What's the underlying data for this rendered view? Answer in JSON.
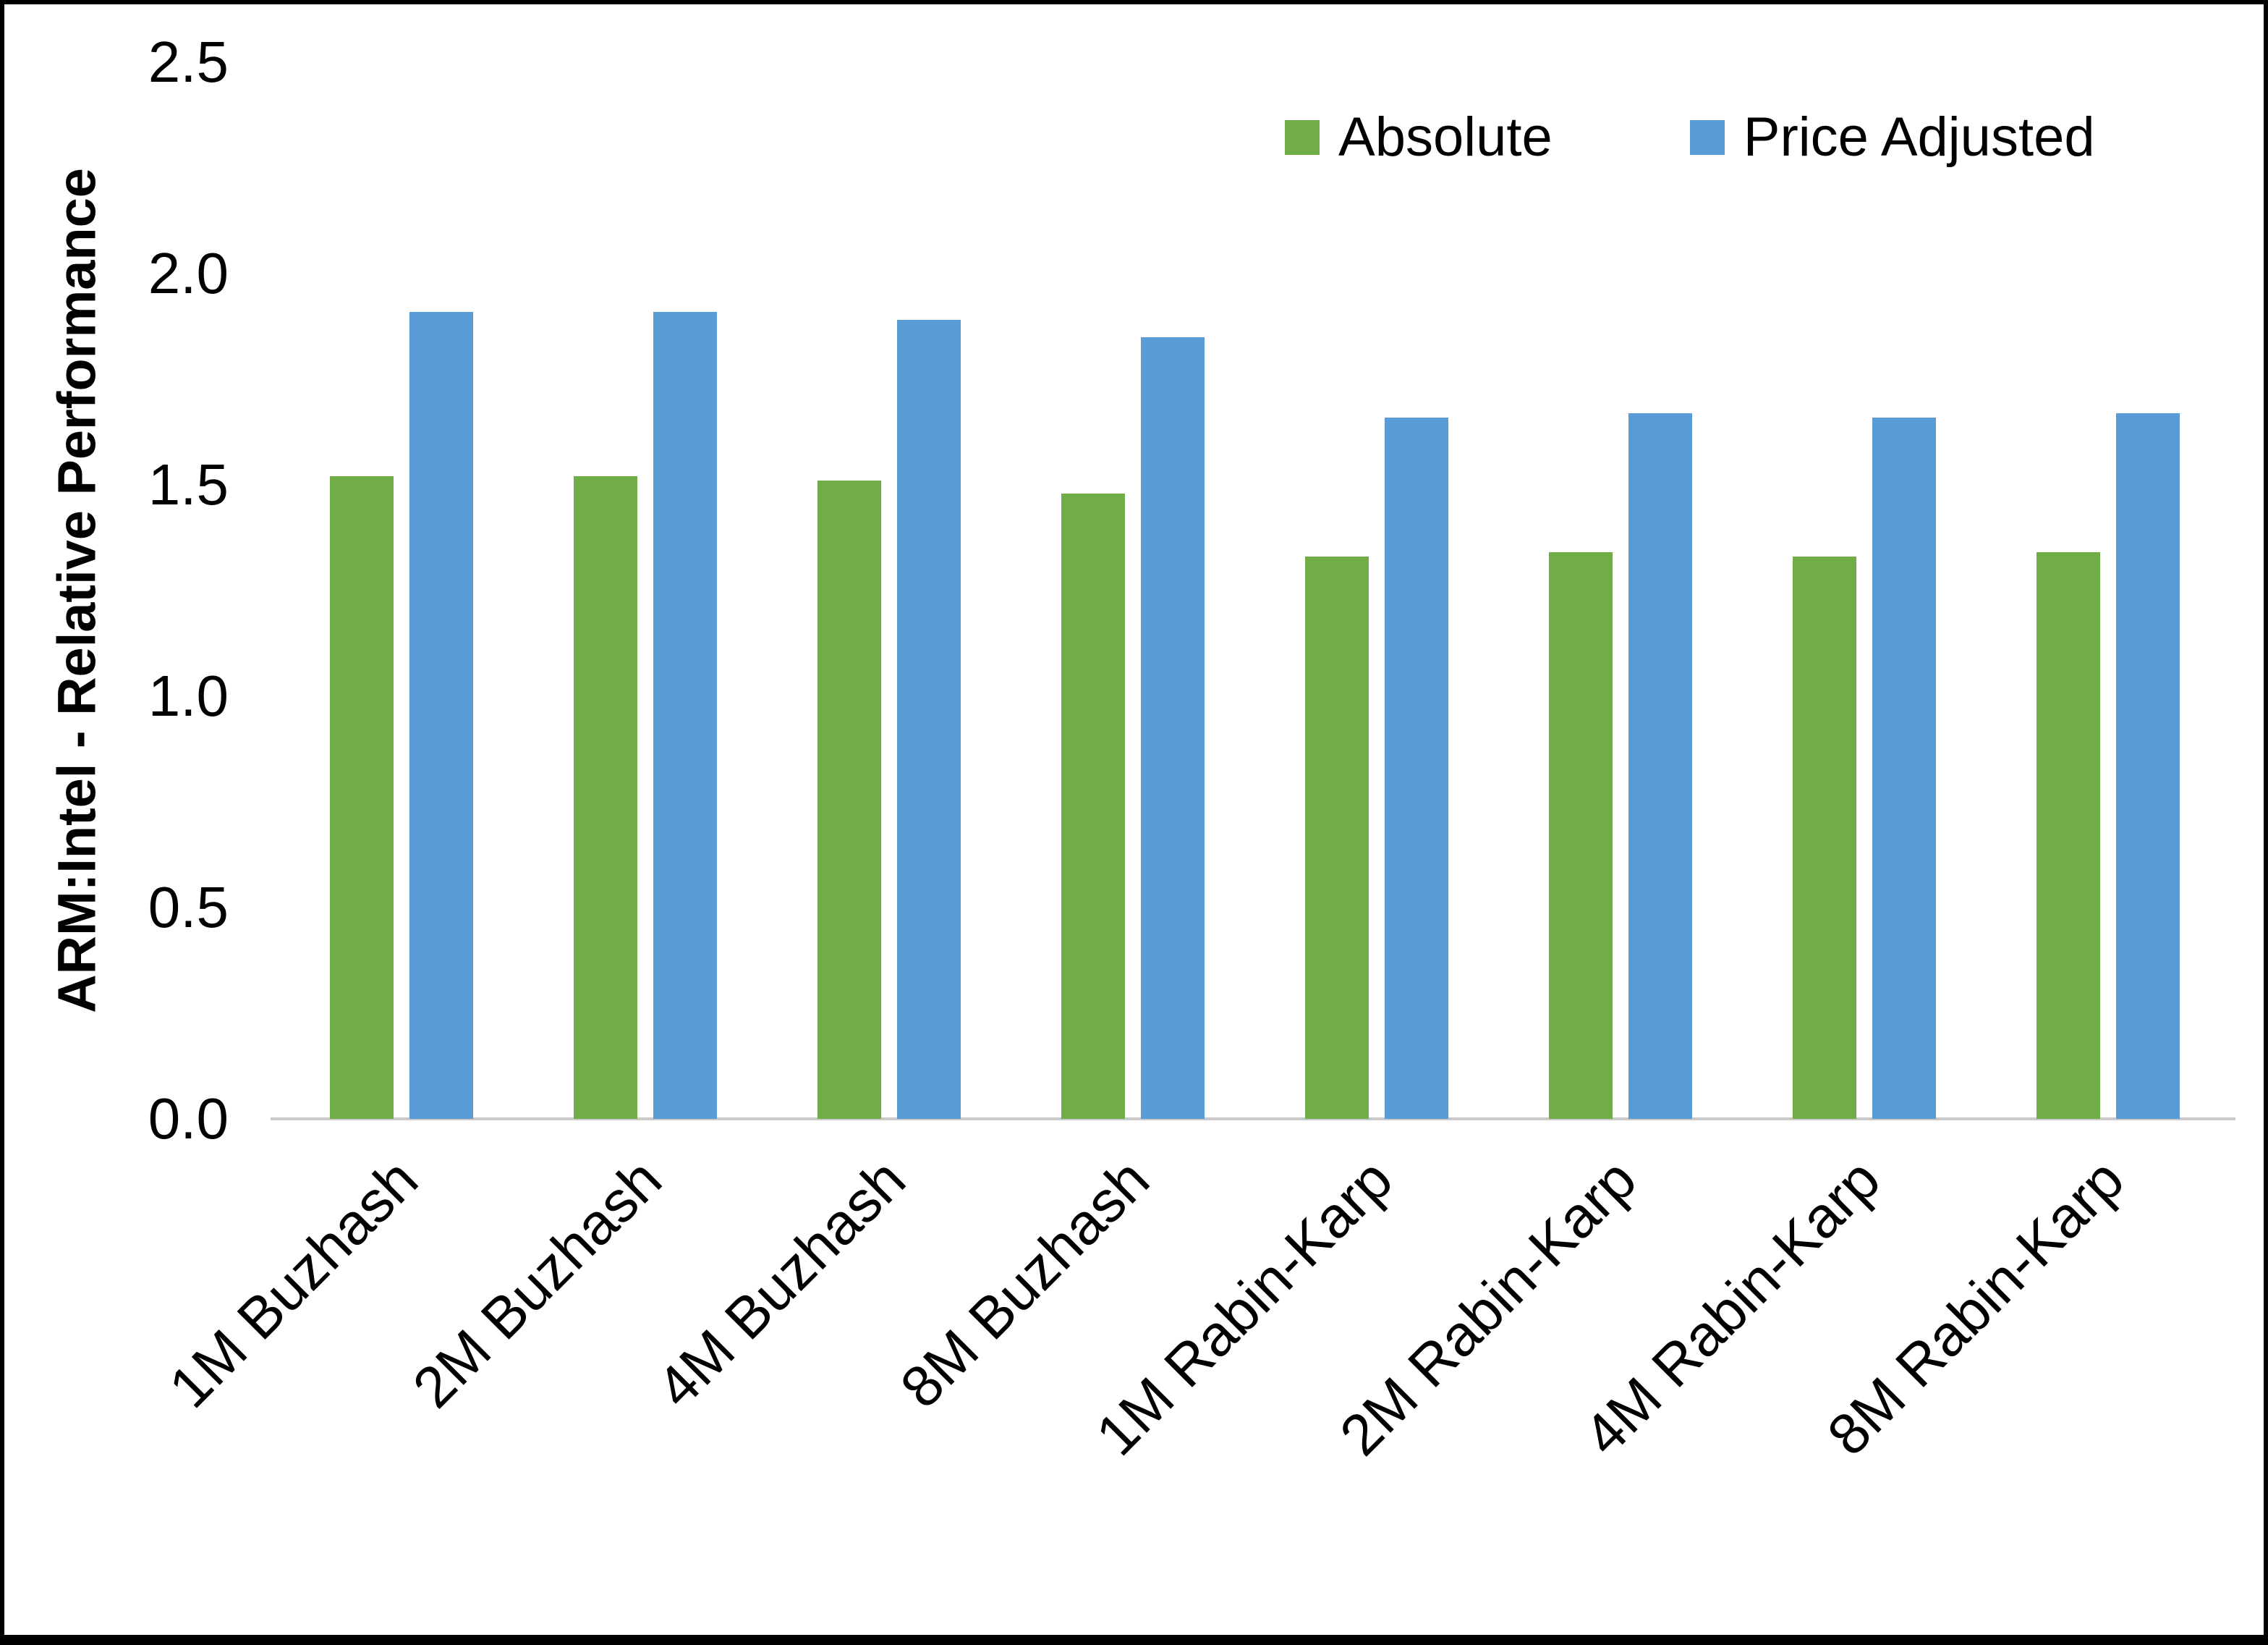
{
  "chart_data": {
    "type": "bar",
    "title": "",
    "ylabel": "ARM:Intel - Relative Performance",
    "xlabel": "",
    "ylim": [
      0,
      2.5
    ],
    "ytick_step": 0.5,
    "yticks": [
      "0.0",
      "0.5",
      "1.0",
      "1.5",
      "2.0",
      "2.5"
    ],
    "categories": [
      "1M Buzhash",
      "2M Buzhash",
      "4M Buzhash",
      "8M Buzhash",
      "1M Rabin-Karp",
      "2M Rabin-Karp",
      "4M Rabin-Karp",
      "8M Rabin-Karp"
    ],
    "series": [
      {
        "name": "Absolute",
        "color": "#70AD47",
        "values": [
          1.52,
          1.52,
          1.51,
          1.48,
          1.33,
          1.34,
          1.33,
          1.34
        ]
      },
      {
        "name": "Price Adjusted",
        "color": "#5B9BD5",
        "values": [
          1.91,
          1.91,
          1.89,
          1.85,
          1.66,
          1.67,
          1.66,
          1.67
        ]
      }
    ],
    "legend_position": "top-right",
    "grid": false,
    "axis_line_color": "#c9c9c9",
    "text_color": "#000000",
    "background": "#ffffff",
    "border_color": "#000000"
  }
}
